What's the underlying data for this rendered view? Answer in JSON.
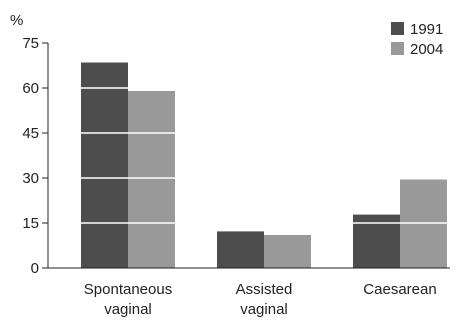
{
  "chart_data": {
    "type": "bar",
    "ylabel": "%",
    "ylim": [
      0,
      75
    ],
    "yticks": [
      0,
      15,
      30,
      45,
      60,
      75
    ],
    "categories": [
      [
        "Spontaneous",
        "vaginal"
      ],
      [
        "Assisted",
        "vaginal"
      ],
      [
        "Caesarean"
      ]
    ],
    "series": [
      {
        "name": "1991",
        "color": "#4d4d4d",
        "values": [
          68.5,
          12.2,
          17.8
        ]
      },
      {
        "name": "2004",
        "color": "#999999",
        "values": [
          59.0,
          11.0,
          29.5
        ]
      }
    ],
    "grid": "white lines across bars at ticks",
    "legend_position": "top-right"
  }
}
